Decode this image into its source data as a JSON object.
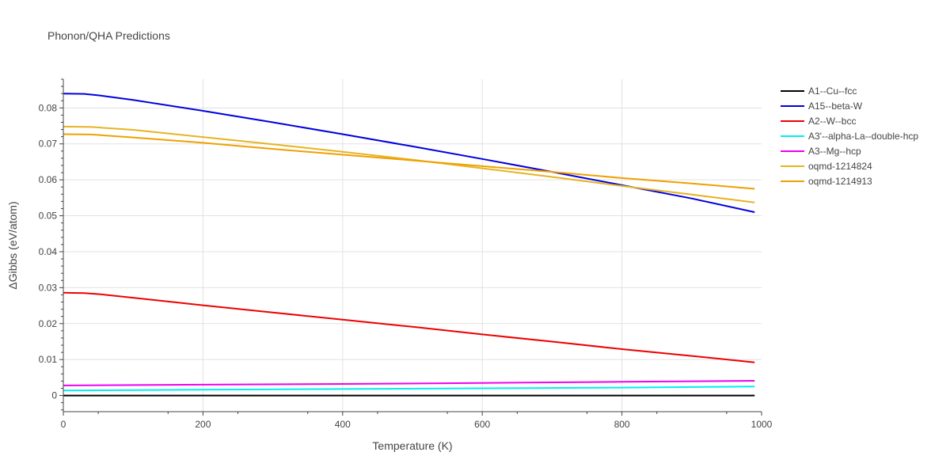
{
  "chart_data": {
    "type": "line",
    "title": "Phonon/QHA Predictions",
    "xlabel": "Temperature (K)",
    "ylabel": "ΔGibbs (eV/atom)",
    "xlim": [
      0,
      1000
    ],
    "ylim": [
      -0.0045,
      0.088
    ],
    "xticks": [
      0,
      200,
      400,
      600,
      800,
      1000
    ],
    "xtick_labels": [
      "0",
      "200",
      "400",
      "600",
      "800",
      "1000"
    ],
    "yticks": [
      0,
      0.01,
      0.02,
      0.03,
      0.04,
      0.05,
      0.06,
      0.07,
      0.08
    ],
    "ytick_labels": [
      "0",
      "0.01",
      "0.02",
      "0.03",
      "0.04",
      "0.05",
      "0.06",
      "0.07",
      "0.08"
    ],
    "grid": true,
    "legend_position": "right",
    "series": [
      {
        "name": "A1--Cu--fcc",
        "color": "#000000",
        "x": [
          0,
          990
        ],
        "y": [
          0.0,
          0.0
        ]
      },
      {
        "name": "A15--beta-W",
        "color": "#0000dd",
        "x": [
          0,
          30,
          50,
          100,
          200,
          300,
          400,
          500,
          600,
          700,
          800,
          900,
          990
        ],
        "y": [
          0.084,
          0.0839,
          0.0835,
          0.0822,
          0.0792,
          0.076,
          0.0727,
          0.0693,
          0.0658,
          0.0622,
          0.0585,
          0.0548,
          0.051
        ]
      },
      {
        "name": "A2--W--bcc",
        "color": "#ee0000",
        "x": [
          0,
          30,
          50,
          100,
          200,
          300,
          400,
          500,
          600,
          700,
          800,
          900,
          990
        ],
        "y": [
          0.0286,
          0.0285,
          0.0282,
          0.0272,
          0.0251,
          0.0231,
          0.0211,
          0.0191,
          0.017,
          0.015,
          0.0129,
          0.011,
          0.0092
        ]
      },
      {
        "name": "A3'--alpha-La--double-hcp",
        "color": "#00eeee",
        "x": [
          0,
          200,
          400,
          600,
          800,
          990
        ],
        "y": [
          0.0014,
          0.0016,
          0.0018,
          0.002,
          0.0022,
          0.0025
        ]
      },
      {
        "name": "A3--Mg--hcp",
        "color": "#ee00ee",
        "x": [
          0,
          200,
          400,
          600,
          800,
          990
        ],
        "y": [
          0.0028,
          0.003,
          0.0032,
          0.0035,
          0.0038,
          0.0041
        ]
      },
      {
        "name": "oqmd-1214824",
        "color": "#e6b422",
        "x": [
          0,
          40,
          100,
          200,
          300,
          400,
          500,
          600,
          700,
          800,
          900,
          990
        ],
        "y": [
          0.0748,
          0.0747,
          0.0739,
          0.0719,
          0.0699,
          0.0678,
          0.0656,
          0.0632,
          0.0608,
          0.0583,
          0.0559,
          0.0537
        ]
      },
      {
        "name": "oqmd-1214913",
        "color": "#f0a000",
        "x": [
          0,
          40,
          100,
          200,
          300,
          400,
          500,
          600,
          700,
          800,
          900,
          990
        ],
        "y": [
          0.0727,
          0.0726,
          0.0718,
          0.0703,
          0.0686,
          0.067,
          0.0654,
          0.0638,
          0.0622,
          0.0605,
          0.059,
          0.0575
        ]
      }
    ]
  }
}
